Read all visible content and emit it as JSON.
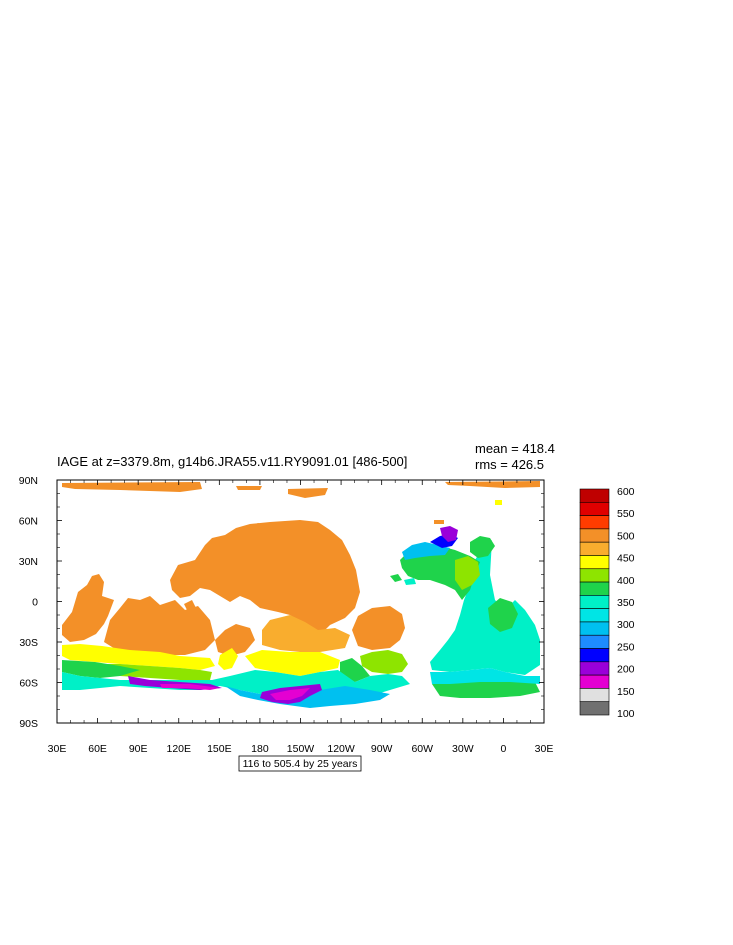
{
  "title": "IAGE at z=3379.8m, g14b6.JRA55.v11.RY9091.01 [486-500]",
  "stats": {
    "mean": "mean = 418.4",
    "rms": "rms = 426.5"
  },
  "contour_info": "116 to 505.4 by 25 years",
  "axes": {
    "x_ticks": [
      {
        "lon": 30,
        "label": "30E"
      },
      {
        "lon": 60,
        "label": "60E"
      },
      {
        "lon": 90,
        "label": "90E"
      },
      {
        "lon": 120,
        "label": "120E"
      },
      {
        "lon": 150,
        "label": "150E"
      },
      {
        "lon": 180,
        "label": "180"
      },
      {
        "lon": 210,
        "label": "150W"
      },
      {
        "lon": 240,
        "label": "120W"
      },
      {
        "lon": 270,
        "label": "90W"
      },
      {
        "lon": 300,
        "label": "60W"
      },
      {
        "lon": 330,
        "label": "30W"
      },
      {
        "lon": 360,
        "label": "0"
      },
      {
        "lon": 390,
        "label": "30E"
      }
    ],
    "y_ticks": [
      {
        "lat": 90,
        "label": "90N"
      },
      {
        "lat": 60,
        "label": "60N"
      },
      {
        "lat": 30,
        "label": "30N"
      },
      {
        "lat": 0,
        "label": "0"
      },
      {
        "lat": -30,
        "label": "30S"
      },
      {
        "lat": -60,
        "label": "60S"
      },
      {
        "lat": -90,
        "label": "90S"
      }
    ],
    "lon_range": [
      30,
      390
    ],
    "lat_range": [
      -90,
      90
    ]
  },
  "colorbar": {
    "labels": [
      "600",
      "550",
      "500",
      "450",
      "400",
      "350",
      "300",
      "250",
      "200",
      "150",
      "100"
    ],
    "colors": [
      "#bf0000",
      "#e00000",
      "#ff3c00",
      "#f39028",
      "#f9ad2e",
      "#ffff00",
      "#8ee400",
      "#1fd34b",
      "#00f0c7",
      "#00e5e5",
      "#00c0f0",
      "#1e8cff",
      "#0000ff",
      "#9a00d9",
      "#e400d2",
      "#e0e0e0",
      "#707070"
    ]
  },
  "fields": {
    "orange": "#f39028",
    "light_orange": "#f9ad2e",
    "yellow": "#ffff00",
    "lime": "#8ee400",
    "green": "#1fd34b",
    "turquoise": "#00f0c7",
    "cyan": "#00e5e5",
    "sky": "#00c0f0",
    "blue": "#1e8cff",
    "deep_blue": "#0000ff",
    "purple": "#9a00d9",
    "magenta": "#e400d2"
  }
}
